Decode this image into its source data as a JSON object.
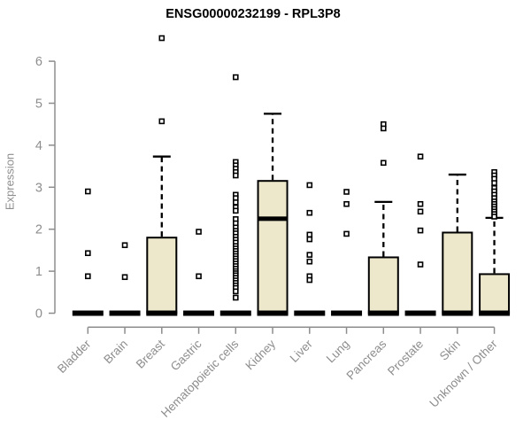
{
  "chart_data": {
    "type": "boxplot",
    "title": "ENSG00000232199 - RPL3P8",
    "ylabel": "Expression",
    "xlabel": "",
    "ylim": [
      0,
      6
    ],
    "yticks": [
      0,
      1,
      2,
      3,
      4,
      5,
      6
    ],
    "grid": false,
    "legend": "none",
    "box_fill": "#EDE8CB",
    "stroke": "#000000",
    "axis_color": "#8d8d8d",
    "categories": [
      "Bladder",
      "Brain",
      "Breast",
      "Gastric",
      "Hematopoietic cells",
      "Kidney",
      "Liver",
      "Lung",
      "Pancreas",
      "Prostate",
      "Skin",
      "Unknown / Other"
    ],
    "series": [
      {
        "category": "Bladder",
        "q1": 0,
        "median": 0,
        "q3": 0,
        "whisker_low": 0,
        "whisker_high": 0,
        "outliers": [
          2.9,
          1.43,
          0.88
        ]
      },
      {
        "category": "Brain",
        "q1": 0,
        "median": 0,
        "q3": 0,
        "whisker_low": 0,
        "whisker_high": 0,
        "outliers": [
          1.62,
          0.86
        ]
      },
      {
        "category": "Breast",
        "q1": 0,
        "median": 0,
        "q3": 1.8,
        "whisker_low": 0,
        "whisker_high": 3.73,
        "outliers": [
          6.55,
          4.57
        ]
      },
      {
        "category": "Gastric",
        "q1": 0,
        "median": 0,
        "q3": 0,
        "whisker_low": 0,
        "whisker_high": 0,
        "outliers": [
          1.94,
          0.88
        ]
      },
      {
        "category": "Hematopoietic cells",
        "q1": 0,
        "median": 0,
        "q3": 0,
        "whisker_low": 0,
        "whisker_high": 0,
        "outliers": [
          5.62,
          3.6,
          3.52,
          3.44,
          3.36,
          3.28,
          2.82,
          2.74,
          2.64,
          2.52,
          2.44,
          2.24,
          2.14,
          2.04,
          1.96,
          1.9,
          1.82,
          1.75,
          1.68,
          1.6,
          1.54,
          1.48,
          1.42,
          1.36,
          1.3,
          1.24,
          1.18,
          1.12,
          1.06,
          1.0,
          0.95,
          0.9,
          0.84,
          0.78,
          0.72,
          0.66,
          0.6,
          0.52,
          0.37
        ]
      },
      {
        "category": "Kidney",
        "q1": 0,
        "median": 2.25,
        "q3": 3.15,
        "whisker_low": 0,
        "whisker_high": 4.75,
        "outliers": []
      },
      {
        "category": "Liver",
        "q1": 0,
        "median": 0,
        "q3": 0,
        "whisker_low": 0,
        "whisker_high": 0,
        "outliers": [
          3.05,
          2.39,
          1.87,
          1.76,
          1.39,
          1.23,
          0.88,
          0.79
        ]
      },
      {
        "category": "Lung",
        "q1": 0,
        "median": 0,
        "q3": 0,
        "whisker_low": 0,
        "whisker_high": 0,
        "outliers": [
          2.89,
          2.6,
          1.89
        ]
      },
      {
        "category": "Pancreas",
        "q1": 0,
        "median": 0,
        "q3": 1.33,
        "whisker_low": 0,
        "whisker_high": 2.65,
        "outliers": [
          4.5,
          4.4,
          3.58
        ]
      },
      {
        "category": "Prostate",
        "q1": 0,
        "median": 0,
        "q3": 0,
        "whisker_low": 0,
        "whisker_high": 0,
        "outliers": [
          3.73,
          2.6,
          2.42,
          1.97,
          1.16
        ]
      },
      {
        "category": "Skin",
        "q1": 0,
        "median": 0,
        "q3": 1.92,
        "whisker_low": 0,
        "whisker_high": 3.3,
        "outliers": []
      },
      {
        "category": "Unknown / Other",
        "q1": 0,
        "median": 0,
        "q3": 0.93,
        "whisker_low": 0,
        "whisker_high": 2.27,
        "outliers": [
          3.36,
          3.28,
          3.2,
          3.1,
          2.98,
          2.9,
          2.82,
          2.74,
          2.66,
          2.6,
          2.54,
          2.48,
          2.42,
          2.36,
          2.3
        ]
      }
    ]
  }
}
